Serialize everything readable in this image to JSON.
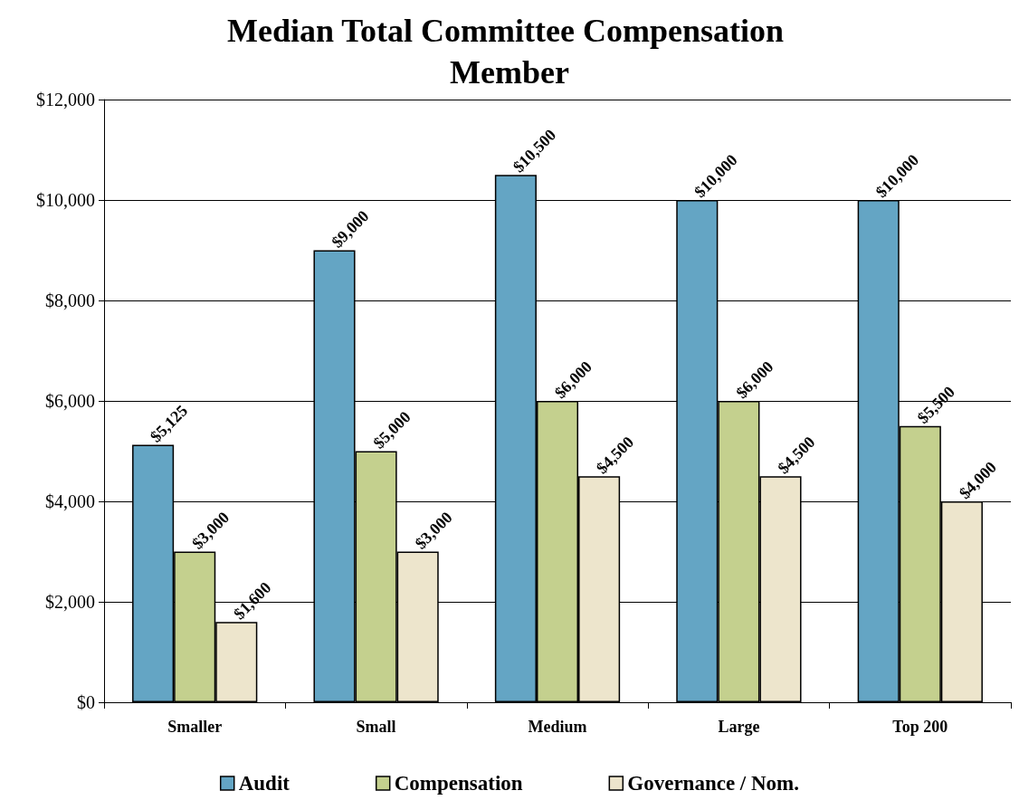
{
  "chart_data": {
    "type": "bar",
    "title": "Median Total Committee Compensation Member",
    "categories": [
      "Smaller",
      "Small",
      "Medium",
      "Large",
      "Top 200"
    ],
    "series": [
      {
        "name": "Audit",
        "color": "#64a5c4",
        "values": [
          5125,
          9000,
          10500,
          10000,
          10000
        ],
        "value_labels": [
          "$5,125",
          "$9,000",
          "$10,500",
          "$10,000",
          "$10,000"
        ]
      },
      {
        "name": "Compensation",
        "color": "#c4d08e",
        "values": [
          3000,
          5000,
          6000,
          6000,
          5500
        ],
        "value_labels": [
          "$3,000",
          "$5,000",
          "$6,000",
          "$6,000",
          "$5,500"
        ]
      },
      {
        "name": "Governance / Nom.",
        "color": "#ede5cc",
        "values": [
          1600,
          3000,
          4500,
          4500,
          4000
        ],
        "value_labels": [
          "$1,600",
          "$3,000",
          "$4,500",
          "$4,500",
          "$4,000"
        ]
      }
    ],
    "ylim": [
      0,
      12000
    ],
    "yticks": [
      {
        "value": 0,
        "label": "$0"
      },
      {
        "value": 2000,
        "label": "$2,000"
      },
      {
        "value": 4000,
        "label": "$4,000"
      },
      {
        "value": 6000,
        "label": "$6,000"
      },
      {
        "value": 8000,
        "label": "$8,000"
      },
      {
        "value": 10000,
        "label": "$10,000"
      },
      {
        "value": 12000,
        "label": "$12,000"
      }
    ],
    "grid": "y",
    "legend": "bottom"
  }
}
